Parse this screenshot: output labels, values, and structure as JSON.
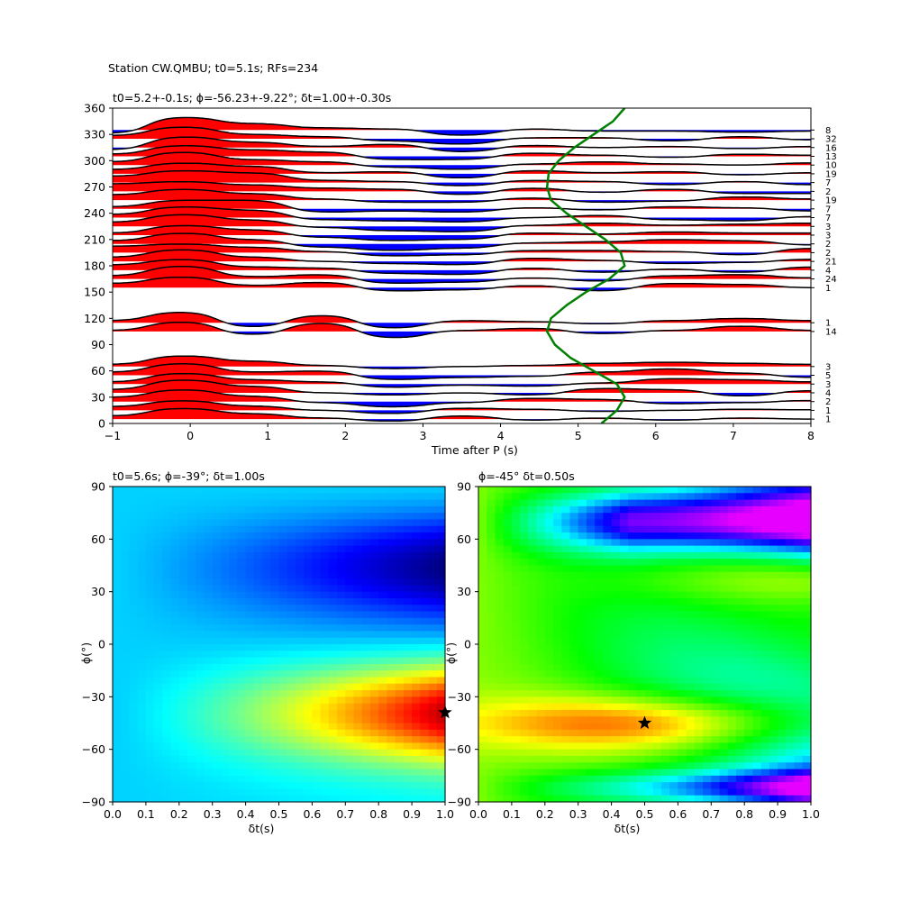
{
  "figure": {
    "suptitle": "Station CW.QMBU; t0=5.1s; RFs=234"
  },
  "chart_data": [
    {
      "type": "line",
      "panel": "receiver-function-traces",
      "title": "t0=5.2+-0.1s; ϕ=-56.23+-9.22°; δt=1.00+-0.30s",
      "xlabel": "Time after P (s)",
      "ylabel": "",
      "xlim": [
        -1,
        8
      ],
      "ylim": [
        0,
        360
      ],
      "x_ticks": [
        -1,
        0,
        1,
        2,
        3,
        4,
        5,
        6,
        7,
        8
      ],
      "y_ticks": [
        0,
        30,
        60,
        90,
        120,
        150,
        180,
        210,
        240,
        270,
        300,
        330,
        360
      ],
      "fill_positive": "#ff0000",
      "fill_negative": "#0000ff",
      "trace_color": "#000000",
      "model_curve_color": "#008000",
      "traces": [
        {
          "baz": 5,
          "count": "1",
          "amps": [
            0.3,
            1.0,
            0.5,
            0.1,
            -0.2,
            0.3,
            -0.1,
            0.1,
            -0.1,
            0.1,
            0.0
          ]
        },
        {
          "baz": 15,
          "count": "1",
          "amps": [
            0.35,
            0.9,
            0.4,
            0.0,
            -0.3,
            0.2,
            0.1,
            -0.1,
            0.0,
            0.1,
            0.05
          ]
        },
        {
          "baz": 25,
          "count": "2",
          "amps": [
            0.4,
            1.1,
            0.5,
            -0.1,
            -0.5,
            -0.1,
            0.3,
            0.2,
            -0.2,
            -0.1,
            0.1
          ]
        },
        {
          "baz": 35,
          "count": "4",
          "amps": [
            0.3,
            1.2,
            0.6,
            0.0,
            -0.2,
            0.0,
            -0.2,
            0.4,
            0.3,
            -0.3,
            0.2
          ]
        },
        {
          "baz": 45,
          "count": "3",
          "amps": [
            0.2,
            1.0,
            0.4,
            0.2,
            -0.3,
            -0.1,
            -0.2,
            0.1,
            0.5,
            0.4,
            0.2
          ]
        },
        {
          "baz": 55,
          "count": "5",
          "amps": [
            0.3,
            1.1,
            0.3,
            0.4,
            -0.4,
            -0.2,
            -0.1,
            0.3,
            0.6,
            0.2,
            -0.2
          ]
        },
        {
          "baz": 65,
          "count": "3",
          "amps": [
            0.2,
            1.0,
            0.5,
            0.1,
            -0.2,
            0.0,
            0.1,
            0.3,
            0.4,
            0.3,
            0.2
          ]
        },
        {
          "baz": 105,
          "count": "14",
          "amps": [
            0.1,
            0.9,
            -0.3,
            0.8,
            -0.6,
            0.1,
            0.3,
            -0.2,
            0.1,
            0.5,
            0.1
          ]
        },
        {
          "baz": 115,
          "count": "1",
          "amps": [
            0.2,
            1.0,
            -0.4,
            0.7,
            -0.5,
            0.2,
            0.1,
            -0.1,
            0.2,
            0.4,
            0.2
          ]
        },
        {
          "baz": 155,
          "count": "1",
          "amps": [
            0.4,
            1.0,
            0.2,
            0.5,
            -0.3,
            -0.2,
            0.2,
            -0.3,
            0.4,
            0.3,
            0.0
          ]
        },
        {
          "baz": 165,
          "count": "24",
          "amps": [
            0.3,
            1.2,
            0.2,
            0.4,
            -0.4,
            -0.3,
            0.1,
            -0.2,
            0.3,
            0.4,
            0.1
          ]
        },
        {
          "baz": 175,
          "count": "4",
          "amps": [
            0.5,
            1.0,
            0.3,
            0.2,
            -0.3,
            -0.4,
            0.2,
            -0.2,
            0.1,
            -0.2,
            0.3
          ]
        },
        {
          "baz": 185,
          "count": "21",
          "amps": [
            0.4,
            1.1,
            0.4,
            0.0,
            -0.2,
            -0.3,
            0.3,
            0.1,
            -0.2,
            -0.1,
            0.2
          ]
        },
        {
          "baz": 195,
          "count": "2",
          "amps": [
            0.6,
            0.8,
            0.5,
            0.1,
            -0.3,
            -0.2,
            0.2,
            0.2,
            0.1,
            -0.2,
            0.4
          ]
        },
        {
          "baz": 205,
          "count": "2",
          "amps": [
            0.3,
            1.0,
            0.4,
            -0.3,
            -0.6,
            -0.4,
            0.1,
            0.2,
            0.4,
            0.3,
            -0.1
          ]
        },
        {
          "baz": 215,
          "count": "3",
          "amps": [
            0.2,
            0.9,
            0.5,
            -0.2,
            -0.5,
            -0.4,
            0.2,
            0.1,
            0.3,
            0.2,
            0.2
          ]
        },
        {
          "baz": 225,
          "count": "3",
          "amps": [
            0.4,
            1.1,
            0.6,
            -0.1,
            -0.4,
            -0.5,
            0.1,
            0.3,
            0.1,
            0.2,
            0.3
          ]
        },
        {
          "baz": 235,
          "count": "7",
          "amps": [
            0.3,
            1.0,
            0.7,
            -0.2,
            -0.3,
            -0.4,
            0.0,
            0.2,
            -0.2,
            -0.3,
            0.1
          ]
        },
        {
          "baz": 245,
          "count": "7",
          "amps": [
            0.2,
            0.8,
            0.8,
            -0.3,
            -0.2,
            -0.3,
            0.1,
            -0.1,
            0.2,
            0.1,
            -0.2
          ]
        },
        {
          "baz": 255,
          "count": "19",
          "amps": [
            0.5,
            1.0,
            0.6,
            0.1,
            -0.2,
            -0.2,
            0.2,
            -0.2,
            -0.1,
            0.3,
            0.1
          ]
        },
        {
          "baz": 265,
          "count": "2",
          "amps": [
            0.7,
            0.9,
            0.6,
            0.3,
            0.2,
            -0.3,
            0.3,
            -0.1,
            0.2,
            -0.2,
            -0.2
          ]
        },
        {
          "baz": 275,
          "count": "7",
          "amps": [
            0.6,
            1.1,
            0.9,
            0.2,
            0.1,
            -0.3,
            0.2,
            0.1,
            -0.2,
            0.1,
            -0.2
          ]
        },
        {
          "baz": 285,
          "count": "19",
          "amps": [
            0.4,
            1.0,
            0.7,
            0.1,
            0.2,
            -0.4,
            0.3,
            0.1,
            0.2,
            -0.1,
            0.1
          ]
        },
        {
          "baz": 295,
          "count": "10",
          "amps": [
            0.3,
            1.2,
            0.5,
            0.3,
            -0.2,
            -0.4,
            0.1,
            0.3,
            0.1,
            0.0,
            0.2
          ]
        },
        {
          "baz": 305,
          "count": "13",
          "amps": [
            0.2,
            1.0,
            0.6,
            0.4,
            -0.3,
            -0.3,
            0.3,
            0.1,
            -0.1,
            0.2,
            0.1
          ]
        },
        {
          "baz": 315,
          "count": "16",
          "amps": [
            -0.2,
            1.0,
            0.5,
            0.1,
            0.3,
            -0.4,
            0.2,
            0.0,
            0.1,
            -0.1,
            0.1
          ]
        },
        {
          "baz": 325,
          "count": "32",
          "amps": [
            0.3,
            1.1,
            0.4,
            0.2,
            -0.2,
            -0.5,
            0.1,
            0.1,
            -0.2,
            0.2,
            -0.1
          ]
        },
        {
          "baz": 335,
          "count": "8",
          "amps": [
            -0.3,
            1.2,
            0.6,
            0.2,
            0.1,
            -0.5,
            0.1,
            -0.1,
            -0.1,
            -0.2,
            -0.1
          ]
        }
      ],
      "model_curve": {
        "baz": [
          0,
          15,
          30,
          45,
          60,
          75,
          90,
          105,
          120,
          135,
          150,
          165,
          180,
          195,
          210,
          225,
          240,
          255,
          270,
          285,
          300,
          315,
          330,
          345,
          360
        ],
        "time": [
          5.3,
          5.5,
          5.6,
          5.5,
          5.2,
          4.9,
          4.7,
          4.6,
          4.65,
          4.85,
          5.1,
          5.4,
          5.6,
          5.55,
          5.35,
          5.1,
          4.85,
          4.65,
          4.6,
          4.62,
          4.75,
          4.95,
          5.2,
          5.45,
          5.6
        ]
      }
    },
    {
      "type": "heatmap",
      "panel": "grid-search-left",
      "title": "t0=5.6s; ϕ=-39°; δt=1.00s",
      "xlabel": "δt(s)",
      "ylabel": "ϕ(°)",
      "xlim": [
        0.0,
        1.0
      ],
      "ylim": [
        -90,
        90
      ],
      "x_ticks": [
        "0.0",
        "0.1",
        "0.2",
        "0.3",
        "0.4",
        "0.5",
        "0.6",
        "0.7",
        "0.8",
        "0.9",
        "1.0"
      ],
      "y_ticks": [
        -90,
        -60,
        -30,
        0,
        30,
        60,
        90
      ],
      "colormap": "jet",
      "best": {
        "dt": 1.0,
        "phi": -39
      },
      "marker": "star",
      "marker_color": "#000000"
    },
    {
      "type": "heatmap",
      "panel": "grid-search-right",
      "title": "ϕ=-45° δt=0.50s",
      "xlabel": "δt(s)",
      "ylabel": "ϕ(°)",
      "xlim": [
        0.0,
        1.0
      ],
      "ylim": [
        -90,
        90
      ],
      "x_ticks": [
        "0.0",
        "0.1",
        "0.2",
        "0.3",
        "0.4",
        "0.5",
        "0.6",
        "0.7",
        "0.8",
        "0.9",
        "1.0"
      ],
      "y_ticks": [
        -90,
        -60,
        -30,
        0,
        30,
        60,
        90
      ],
      "colormap": "gist_rainbow",
      "best": {
        "dt": 0.5,
        "phi": -45
      },
      "marker": "star",
      "marker_color": "#000000"
    }
  ]
}
